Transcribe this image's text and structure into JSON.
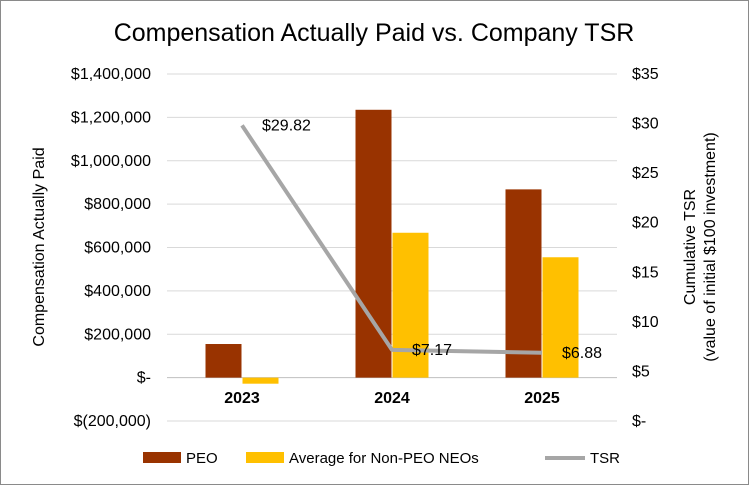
{
  "chart_data": {
    "type": "bar",
    "title": "Compensation Actually Paid vs. Company TSR",
    "categories": [
      "2023",
      "2024",
      "2025"
    ],
    "ylabel": "Compensation Actually Paid",
    "y2label_line1": "Cumulative TSR",
    "y2label_line2": "(value of initial $100 investment)",
    "ylim": [
      -200000,
      1400000
    ],
    "y2lim": [
      0,
      35
    ],
    "y_ticks": [
      {
        "value": 1400000,
        "label": "$1,400,000"
      },
      {
        "value": 1200000,
        "label": "$1,200,000"
      },
      {
        "value": 1000000,
        "label": "$1,000,000"
      },
      {
        "value": 800000,
        "label": "$800,000"
      },
      {
        "value": 600000,
        "label": "$600,000"
      },
      {
        "value": 400000,
        "label": "$400,000"
      },
      {
        "value": 200000,
        "label": "$200,000"
      },
      {
        "value": 0,
        "label": "$-"
      },
      {
        "value": -200000,
        "label": "$(200,000)"
      }
    ],
    "y2_ticks": [
      {
        "value": 35,
        "label": "$35"
      },
      {
        "value": 30,
        "label": "$30"
      },
      {
        "value": 25,
        "label": "$25"
      },
      {
        "value": 20,
        "label": "$20"
      },
      {
        "value": 15,
        "label": "$15"
      },
      {
        "value": 10,
        "label": "$10"
      },
      {
        "value": 5,
        "label": "$5"
      },
      {
        "value": 0,
        "label": "$-"
      }
    ],
    "grid": true,
    "legend_position": "bottom",
    "series": [
      {
        "name": "PEO",
        "type": "bar",
        "axis": "left",
        "color": "#993300",
        "values": [
          155000,
          1235000,
          868000
        ]
      },
      {
        "name": "Average for Non-PEO NEOs",
        "type": "bar",
        "axis": "left",
        "color": "#FFC000",
        "values": [
          -28000,
          668000,
          555000
        ]
      },
      {
        "name": "TSR",
        "type": "line",
        "axis": "right",
        "color": "#A6A6A6",
        "values": [
          29.82,
          7.17,
          6.88
        ],
        "labels": [
          "$29.82",
          "$7.17",
          "$6.88"
        ]
      }
    ]
  }
}
